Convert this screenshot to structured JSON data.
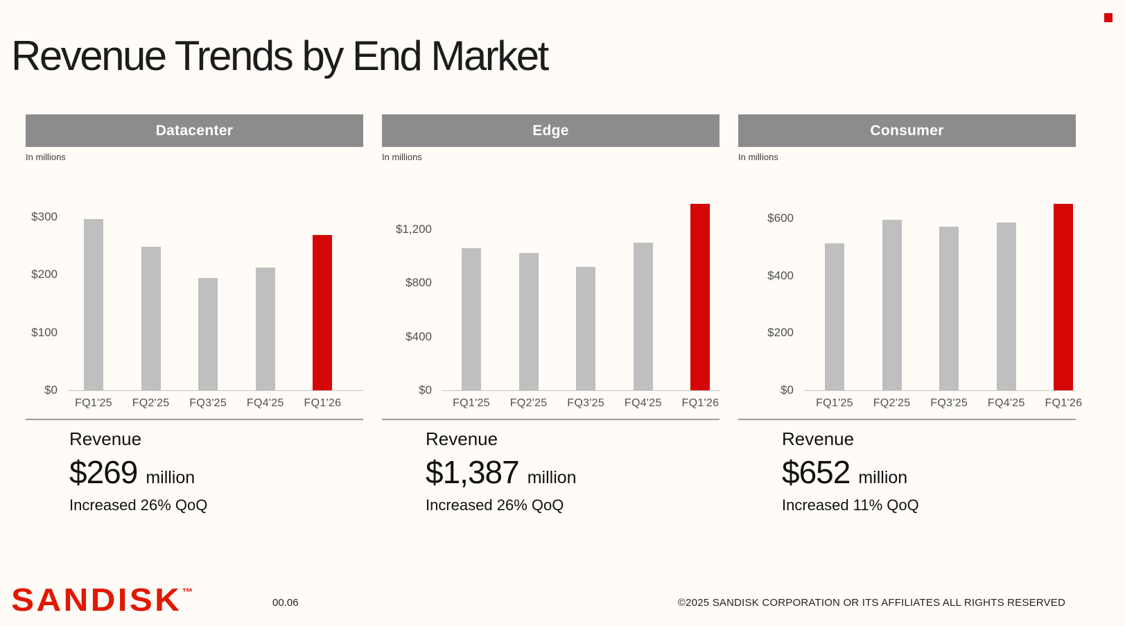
{
  "page": {
    "title": "Revenue Trends by End Market",
    "page_number": "00.06",
    "copyright": "©2025 SANDISK CORPORATION OR ITS AFFILIATES ALL RIGHTS RESERVED",
    "logo_text": "SANDISK",
    "logo_tm": "™"
  },
  "colors": {
    "background": "#FFFBF7",
    "header_gray": "#8C8C8C",
    "bar_gray": "#BFBFBF",
    "accent_red": "#D50606",
    "logo_red": "#E21800"
  },
  "chart_data": [
    {
      "type": "bar",
      "title": "Datacenter",
      "units_label": "In millions",
      "categories": [
        "FQ1'25",
        "FQ2'25",
        "FQ3'25",
        "FQ4'25",
        "FQ1'26"
      ],
      "values": [
        297,
        248,
        195,
        213,
        269
      ],
      "highlight_index": 4,
      "highlight_color": "#D50606",
      "bar_color": "#BFBFBF",
      "ylim": [
        0,
        372
      ],
      "yticks": [
        {
          "value": 300,
          "label": "$300"
        },
        {
          "value": 200,
          "label": "$200"
        },
        {
          "value": 100,
          "label": "$100"
        },
        {
          "value": 0,
          "label": "$0"
        }
      ],
      "grid": false,
      "legend": null,
      "summary": {
        "label": "Revenue",
        "value": "$269",
        "unit": "million",
        "change": "Increased 26% QoQ"
      }
    },
    {
      "type": "bar",
      "title": "Edge",
      "units_label": "In millions",
      "categories": [
        "FQ1'25",
        "FQ2'25",
        "FQ3'25",
        "FQ4'25",
        "FQ1'26"
      ],
      "values": [
        1057,
        1022,
        919,
        1101,
        1387
      ],
      "highlight_index": 4,
      "highlight_color": "#D50606",
      "bar_color": "#BFBFBF",
      "ylim": [
        0,
        1600
      ],
      "yticks": [
        {
          "value": 1200,
          "label": "$1,200"
        },
        {
          "value": 800,
          "label": "$800"
        },
        {
          "value": 400,
          "label": "$400"
        },
        {
          "value": 0,
          "label": "$0"
        }
      ],
      "grid": false,
      "legend": null,
      "summary": {
        "label": "Revenue",
        "value": "$1,387",
        "unit": "million",
        "change": "Increased 26% QoQ"
      }
    },
    {
      "type": "bar",
      "title": "Consumer",
      "units_label": "In millions",
      "categories": [
        "FQ1'25",
        "FQ2'25",
        "FQ3'25",
        "FQ4'25",
        "FQ1'26"
      ],
      "values": [
        512,
        596,
        571,
        586,
        652
      ],
      "highlight_index": 4,
      "highlight_color": "#D50606",
      "bar_color": "#BFBFBF",
      "ylim": [
        0,
        750
      ],
      "yticks": [
        {
          "value": 600,
          "label": "$600"
        },
        {
          "value": 400,
          "label": "$400"
        },
        {
          "value": 200,
          "label": "$200"
        },
        {
          "value": 0,
          "label": "$0"
        }
      ],
      "grid": false,
      "legend": null,
      "summary": {
        "label": "Revenue",
        "value": "$652",
        "unit": "million",
        "change": "Increased 11% QoQ"
      }
    }
  ]
}
